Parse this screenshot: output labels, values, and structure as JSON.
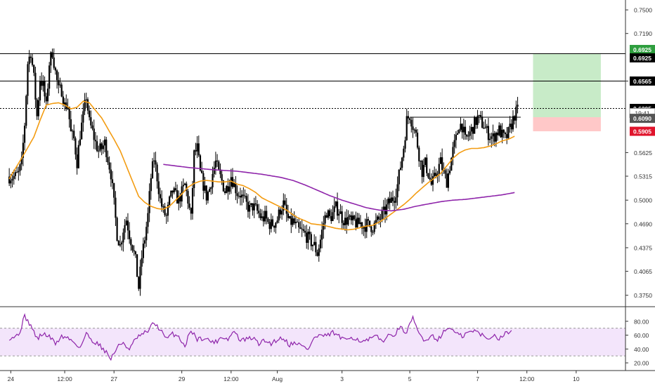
{
  "chart_data": {
    "type": "candlestick",
    "instrument_note": "",
    "colors": {
      "candle": "#000000",
      "ma_fast": "#f39c12",
      "ma_slow": "#8e24aa",
      "rsi": "#8e24aa",
      "rsi_band": "#f3e5fb",
      "level_line": "#000000",
      "target_zone": "#c8ebc8",
      "stop_zone": "#ffc8c8",
      "target_label": "#2e9e3e",
      "stop_label": "#e0142c",
      "price_label": "#000000",
      "countdown_label": "#555555"
    },
    "price_axis": {
      "ticks": [
        "0.7500",
        "0.7190",
        "0.6565",
        "0.5625",
        "0.5315",
        "0.5000",
        "0.4690",
        "0.4375",
        "0.4065",
        "0.3750"
      ],
      "tick_values": [
        0.75,
        0.719,
        0.6565,
        0.5625,
        0.5315,
        0.5,
        0.469,
        0.4375,
        0.4065,
        0.375
      ],
      "range": [
        0.36,
        0.763
      ]
    },
    "time_axis": {
      "ticks": [
        "24",
        "12:00",
        "27",
        "29",
        "12:00",
        "Aug",
        "3",
        "5",
        "7",
        "12:00",
        "10"
      ],
      "tick_index": [
        0.5,
        18,
        34,
        56,
        72,
        87,
        108,
        130,
        152,
        168,
        184
      ],
      "range": [
        -3,
        200
      ]
    },
    "levels": [
      {
        "label": "0.6925",
        "value": 0.6925,
        "style": "solid",
        "tag": "black"
      },
      {
        "label": "0.6565",
        "value": 0.6565,
        "style": "solid",
        "tag": "black"
      },
      {
        "label": "0.6205",
        "value": 0.6205,
        "style": "dotted",
        "tag": "black"
      }
    ],
    "position": {
      "entry": 0.609,
      "target": 0.6925,
      "stop": 0.5905,
      "entry_label": "0.6090",
      "target_label": "0.6925",
      "stop_label": "0.5905",
      "countdown": "19:41",
      "zone_index": [
        170,
        192
      ]
    },
    "resistance_segment": {
      "value": 0.609,
      "index": [
        130,
        166
      ]
    },
    "rsi": {
      "ticks": [
        "80.00",
        "60.00",
        "40.00",
        "20.00"
      ],
      "tick_values": [
        80,
        60,
        40,
        20
      ],
      "range": [
        17,
        98
      ],
      "band": [
        30,
        70
      ],
      "keys": [
        [
          0,
          56
        ],
        [
          3,
          60
        ],
        [
          5,
          87
        ],
        [
          7,
          74
        ],
        [
          9,
          55
        ],
        [
          11,
          62
        ],
        [
          13,
          58
        ],
        [
          15,
          48
        ],
        [
          17,
          58
        ],
        [
          19,
          56
        ],
        [
          21,
          50
        ],
        [
          23,
          42
        ],
        [
          25,
          62
        ],
        [
          27,
          52
        ],
        [
          29,
          47
        ],
        [
          31,
          38
        ],
        [
          33,
          26
        ],
        [
          35,
          42
        ],
        [
          37,
          50
        ],
        [
          39,
          38
        ],
        [
          41,
          55
        ],
        [
          43,
          60
        ],
        [
          45,
          66
        ],
        [
          47,
          78
        ],
        [
          49,
          68
        ],
        [
          51,
          54
        ],
        [
          53,
          62
        ],
        [
          55,
          58
        ],
        [
          57,
          44
        ],
        [
          59,
          68
        ],
        [
          61,
          54
        ],
        [
          63,
          56
        ],
        [
          65,
          52
        ],
        [
          67,
          50
        ],
        [
          69,
          58
        ],
        [
          71,
          54
        ],
        [
          73,
          66
        ],
        [
          75,
          52
        ],
        [
          77,
          54
        ],
        [
          79,
          56
        ],
        [
          81,
          48
        ],
        [
          83,
          52
        ],
        [
          85,
          48
        ],
        [
          87,
          54
        ],
        [
          89,
          56
        ],
        [
          91,
          46
        ],
        [
          93,
          50
        ],
        [
          95,
          44
        ],
        [
          97,
          40
        ],
        [
          99,
          56
        ],
        [
          101,
          60
        ],
        [
          103,
          58
        ],
        [
          105,
          64
        ],
        [
          107,
          58
        ],
        [
          109,
          52
        ],
        [
          111,
          58
        ],
        [
          113,
          54
        ],
        [
          115,
          50
        ],
        [
          117,
          54
        ],
        [
          119,
          58
        ],
        [
          121,
          52
        ],
        [
          123,
          58
        ],
        [
          125,
          62
        ],
        [
          127,
          70
        ],
        [
          129,
          64
        ],
        [
          131,
          84
        ],
        [
          133,
          62
        ],
        [
          135,
          52
        ],
        [
          137,
          60
        ],
        [
          139,
          54
        ],
        [
          141,
          64
        ],
        [
          143,
          72
        ],
        [
          145,
          62
        ],
        [
          147,
          58
        ],
        [
          149,
          64
        ],
        [
          151,
          66
        ],
        [
          153,
          62
        ],
        [
          155,
          54
        ],
        [
          157,
          60
        ],
        [
          159,
          56
        ],
        [
          161,
          62
        ],
        [
          163,
          66
        ]
      ]
    },
    "ma_fast_keys": [
      [
        0,
        0.528
      ],
      [
        4,
        0.555
      ],
      [
        8,
        0.583
      ],
      [
        10,
        0.605
      ],
      [
        12,
        0.625
      ],
      [
        14,
        0.627
      ],
      [
        16,
        0.628
      ],
      [
        18,
        0.625
      ],
      [
        20,
        0.62
      ],
      [
        22,
        0.622
      ],
      [
        24,
        0.63
      ],
      [
        26,
        0.628
      ],
      [
        28,
        0.618
      ],
      [
        30,
        0.608
      ],
      [
        32,
        0.594
      ],
      [
        34,
        0.58
      ],
      [
        36,
        0.565
      ],
      [
        38,
        0.545
      ],
      [
        40,
        0.525
      ],
      [
        42,
        0.505
      ],
      [
        44,
        0.497
      ],
      [
        46,
        0.492
      ],
      [
        48,
        0.489
      ],
      [
        50,
        0.488
      ],
      [
        52,
        0.492
      ],
      [
        54,
        0.5
      ],
      [
        56,
        0.508
      ],
      [
        58,
        0.517
      ],
      [
        60,
        0.522
      ],
      [
        62,
        0.525
      ],
      [
        64,
        0.526
      ],
      [
        66,
        0.525
      ],
      [
        68,
        0.524
      ],
      [
        70,
        0.524
      ],
      [
        72,
        0.525
      ],
      [
        74,
        0.521
      ],
      [
        76,
        0.519
      ],
      [
        78,
        0.515
      ],
      [
        80,
        0.51
      ],
      [
        82,
        0.503
      ],
      [
        84,
        0.499
      ],
      [
        86,
        0.495
      ],
      [
        88,
        0.491
      ],
      [
        90,
        0.487
      ],
      [
        92,
        0.481
      ],
      [
        94,
        0.476
      ],
      [
        96,
        0.473
      ],
      [
        98,
        0.469
      ],
      [
        100,
        0.468
      ],
      [
        102,
        0.467
      ],
      [
        104,
        0.465
      ],
      [
        106,
        0.463
      ],
      [
        108,
        0.462
      ],
      [
        110,
        0.461
      ],
      [
        112,
        0.462
      ],
      [
        114,
        0.464
      ],
      [
        116,
        0.466
      ],
      [
        118,
        0.467
      ],
      [
        120,
        0.471
      ],
      [
        122,
        0.476
      ],
      [
        124,
        0.482
      ],
      [
        126,
        0.488
      ],
      [
        128,
        0.494
      ],
      [
        130,
        0.501
      ],
      [
        132,
        0.509
      ],
      [
        134,
        0.516
      ],
      [
        136,
        0.523
      ],
      [
        138,
        0.529
      ],
      [
        140,
        0.535
      ],
      [
        142,
        0.545
      ],
      [
        144,
        0.555
      ],
      [
        146,
        0.562
      ],
      [
        148,
        0.566
      ],
      [
        150,
        0.568
      ],
      [
        152,
        0.568
      ],
      [
        154,
        0.569
      ],
      [
        156,
        0.571
      ],
      [
        158,
        0.574
      ],
      [
        160,
        0.578
      ],
      [
        162,
        0.58
      ],
      [
        164,
        0.584
      ]
    ],
    "ma_slow_keys": [
      [
        50,
        0.547
      ],
      [
        58,
        0.543
      ],
      [
        66,
        0.54
      ],
      [
        74,
        0.538
      ],
      [
        82,
        0.534
      ],
      [
        88,
        0.53
      ],
      [
        92,
        0.526
      ],
      [
        96,
        0.52
      ],
      [
        100,
        0.513
      ],
      [
        104,
        0.506
      ],
      [
        108,
        0.5
      ],
      [
        112,
        0.495
      ],
      [
        116,
        0.49
      ],
      [
        120,
        0.487
      ],
      [
        124,
        0.486
      ],
      [
        128,
        0.488
      ],
      [
        132,
        0.492
      ],
      [
        136,
        0.495
      ],
      [
        140,
        0.498
      ],
      [
        144,
        0.5
      ],
      [
        148,
        0.501
      ],
      [
        152,
        0.503
      ],
      [
        156,
        0.505
      ],
      [
        160,
        0.507
      ],
      [
        164,
        0.51
      ]
    ],
    "price_keys": [
      [
        0,
        0.531
      ],
      [
        2,
        0.531
      ],
      [
        3,
        0.535
      ],
      [
        4,
        0.548
      ],
      [
        5,
        0.6
      ],
      [
        6,
        0.68
      ],
      [
        7,
        0.695
      ],
      [
        8,
        0.66
      ],
      [
        9,
        0.61
      ],
      [
        10,
        0.66
      ],
      [
        11,
        0.65
      ],
      [
        12,
        0.622
      ],
      [
        13,
        0.68
      ],
      [
        14,
        0.695
      ],
      [
        15,
        0.668
      ],
      [
        16,
        0.644
      ],
      [
        17,
        0.645
      ],
      [
        18,
        0.624
      ],
      [
        19,
        0.625
      ],
      [
        20,
        0.588
      ],
      [
        21,
        0.58
      ],
      [
        22,
        0.55
      ],
      [
        23,
        0.587
      ],
      [
        24,
        0.61
      ],
      [
        25,
        0.637
      ],
      [
        26,
        0.602
      ],
      [
        27,
        0.59
      ],
      [
        28,
        0.575
      ],
      [
        29,
        0.565
      ],
      [
        30,
        0.568
      ],
      [
        31,
        0.575
      ],
      [
        32,
        0.555
      ],
      [
        33,
        0.535
      ],
      [
        34,
        0.495
      ],
      [
        35,
        0.455
      ],
      [
        36,
        0.44
      ],
      [
        37,
        0.462
      ],
      [
        38,
        0.475
      ],
      [
        39,
        0.455
      ],
      [
        40,
        0.44
      ],
      [
        41,
        0.42
      ],
      [
        42,
        0.385
      ],
      [
        43,
        0.425
      ],
      [
        44,
        0.45
      ],
      [
        45,
        0.48
      ],
      [
        46,
        0.53
      ],
      [
        47,
        0.555
      ],
      [
        48,
        0.53
      ],
      [
        49,
        0.5
      ],
      [
        50,
        0.485
      ],
      [
        51,
        0.478
      ],
      [
        52,
        0.498
      ],
      [
        53,
        0.512
      ],
      [
        54,
        0.505
      ],
      [
        55,
        0.5
      ],
      [
        56,
        0.51
      ],
      [
        57,
        0.52
      ],
      [
        58,
        0.5
      ],
      [
        59,
        0.475
      ],
      [
        60,
        0.56
      ],
      [
        61,
        0.568
      ],
      [
        62,
        0.535
      ],
      [
        63,
        0.52
      ],
      [
        64,
        0.505
      ],
      [
        65,
        0.515
      ],
      [
        66,
        0.535
      ],
      [
        67,
        0.55
      ],
      [
        68,
        0.535
      ],
      [
        69,
        0.525
      ],
      [
        70,
        0.512
      ],
      [
        71,
        0.52
      ],
      [
        72,
        0.532
      ],
      [
        73,
        0.52
      ],
      [
        74,
        0.51
      ],
      [
        75,
        0.508
      ],
      [
        76,
        0.5
      ],
      [
        77,
        0.494
      ],
      [
        78,
        0.488
      ],
      [
        79,
        0.492
      ],
      [
        80,
        0.488
      ],
      [
        81,
        0.482
      ],
      [
        82,
        0.475
      ],
      [
        83,
        0.478
      ],
      [
        84,
        0.47
      ],
      [
        85,
        0.468
      ],
      [
        86,
        0.47
      ],
      [
        87,
        0.475
      ],
      [
        88,
        0.488
      ],
      [
        89,
        0.495
      ],
      [
        90,
        0.48
      ],
      [
        91,
        0.47
      ],
      [
        92,
        0.472
      ],
      [
        93,
        0.466
      ],
      [
        94,
        0.46
      ],
      [
        95,
        0.458
      ],
      [
        96,
        0.455
      ],
      [
        97,
        0.45
      ],
      [
        98,
        0.445
      ],
      [
        99,
        0.44
      ],
      [
        100,
        0.43
      ],
      [
        101,
        0.448
      ],
      [
        102,
        0.47
      ],
      [
        103,
        0.485
      ],
      [
        104,
        0.476
      ],
      [
        105,
        0.482
      ],
      [
        106,
        0.49
      ],
      [
        107,
        0.486
      ],
      [
        108,
        0.477
      ],
      [
        109,
        0.472
      ],
      [
        110,
        0.476
      ],
      [
        111,
        0.47
      ],
      [
        112,
        0.472
      ],
      [
        113,
        0.468
      ],
      [
        114,
        0.47
      ],
      [
        115,
        0.466
      ],
      [
        116,
        0.468
      ],
      [
        117,
        0.466
      ],
      [
        118,
        0.465
      ],
      [
        119,
        0.47
      ],
      [
        120,
        0.474
      ],
      [
        121,
        0.48
      ],
      [
        122,
        0.486
      ],
      [
        123,
        0.495
      ],
      [
        124,
        0.5
      ],
      [
        125,
        0.505
      ],
      [
        126,
        0.52
      ],
      [
        127,
        0.545
      ],
      [
        128,
        0.57
      ],
      [
        129,
        0.605
      ],
      [
        130,
        0.612
      ],
      [
        131,
        0.598
      ],
      [
        132,
        0.585
      ],
      [
        133,
        0.56
      ],
      [
        134,
        0.538
      ],
      [
        135,
        0.548
      ],
      [
        136,
        0.535
      ],
      [
        137,
        0.52
      ],
      [
        138,
        0.528
      ],
      [
        139,
        0.54
      ],
      [
        140,
        0.55
      ],
      [
        141,
        0.535
      ],
      [
        142,
        0.525
      ],
      [
        143,
        0.545
      ],
      [
        144,
        0.565
      ],
      [
        145,
        0.58
      ],
      [
        146,
        0.6
      ],
      [
        147,
        0.598
      ],
      [
        148,
        0.578
      ],
      [
        149,
        0.585
      ],
      [
        150,
        0.592
      ],
      [
        151,
        0.6
      ],
      [
        152,
        0.608
      ],
      [
        153,
        0.603
      ],
      [
        154,
        0.598
      ],
      [
        155,
        0.59
      ],
      [
        156,
        0.585
      ],
      [
        157,
        0.582
      ],
      [
        158,
        0.588
      ],
      [
        159,
        0.592
      ],
      [
        160,
        0.585
      ],
      [
        161,
        0.58
      ],
      [
        162,
        0.588
      ],
      [
        163,
        0.6
      ],
      [
        164,
        0.612
      ],
      [
        165,
        0.618
      ]
    ]
  }
}
